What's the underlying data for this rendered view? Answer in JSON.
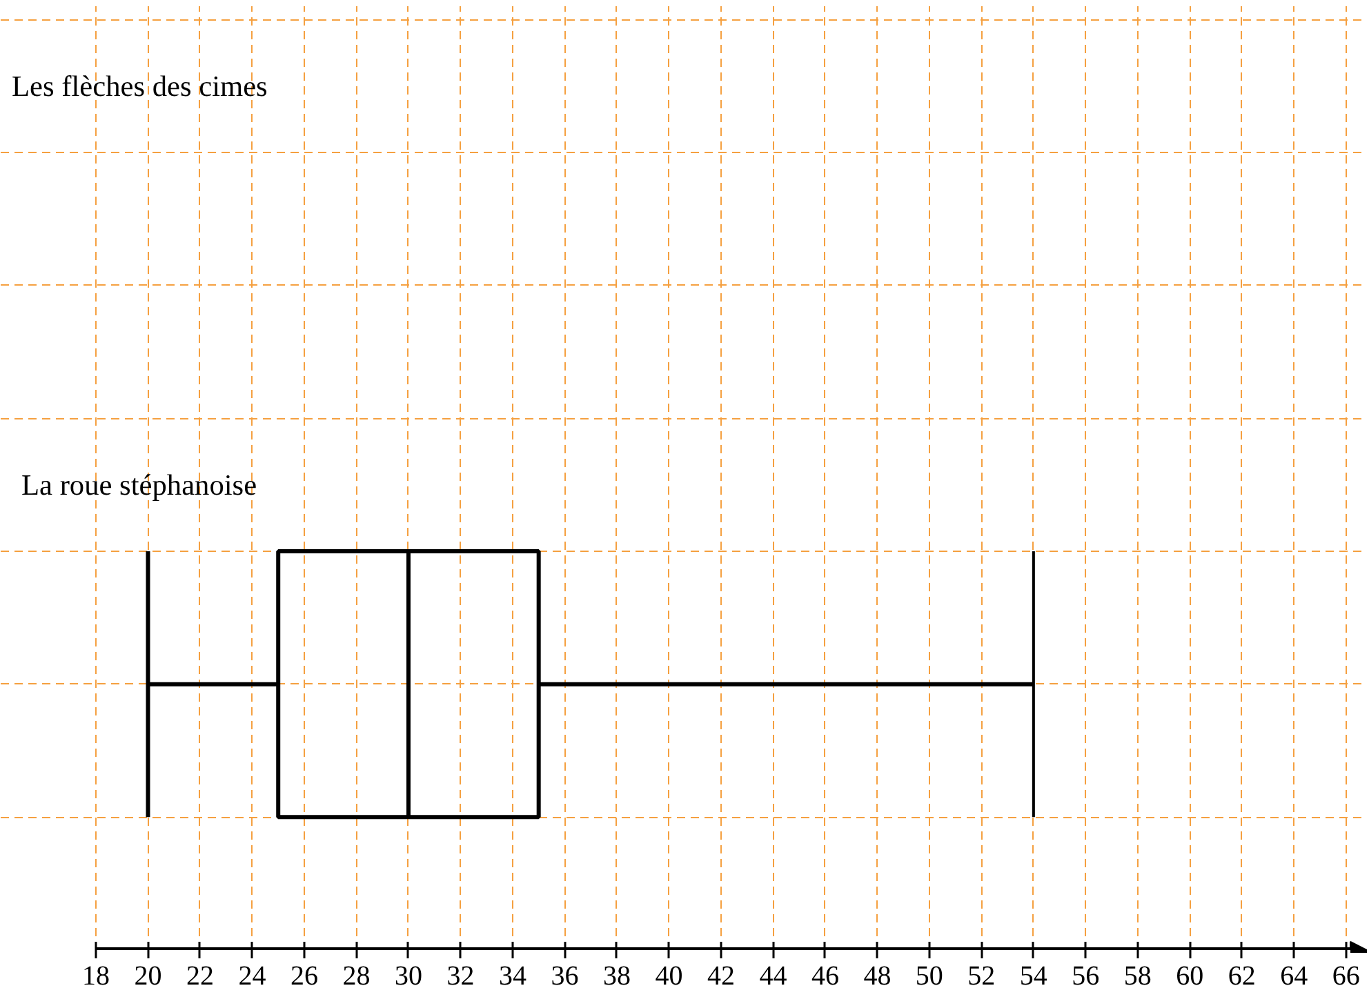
{
  "chart_data": {
    "type": "box",
    "orientation": "horizontal",
    "categories": [
      "Les flèches des cimes",
      "La roue stéphanoise"
    ],
    "boxes": [
      null,
      {
        "low": 20,
        "q1": 25,
        "median": 30,
        "q3": 35,
        "high": 54
      }
    ],
    "xlim": [
      18,
      66.8
    ],
    "xticks": [
      18,
      20,
      22,
      24,
      26,
      28,
      30,
      32,
      34,
      36,
      38,
      40,
      42,
      44,
      46,
      48,
      50,
      52,
      54,
      56,
      58,
      60,
      62,
      64,
      66
    ],
    "grid": true,
    "color": "#000000"
  }
}
